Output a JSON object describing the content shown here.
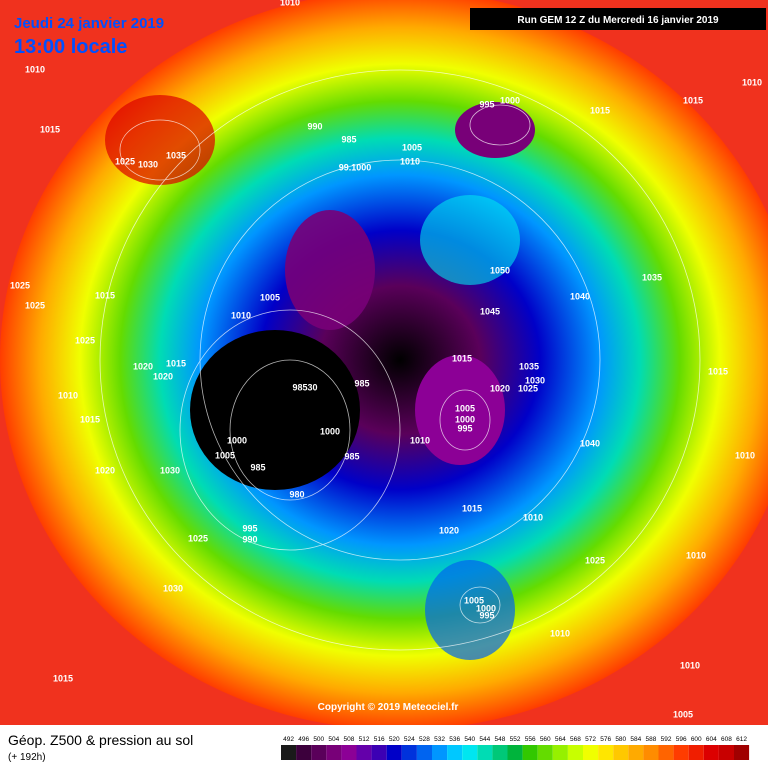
{
  "header": {
    "date": "Jeudi 24 janvier 2019",
    "time": "13:00 locale",
    "run": "Run GEM 12 Z du Mercredi 16 janvier 2019"
  },
  "footer": {
    "title": "Géop. Z500 & pression au sol",
    "lead": "(+ 192h)",
    "copyright": "Copyright © 2019 Meteociel.fr"
  },
  "legend": {
    "values": [
      492,
      496,
      500,
      504,
      508,
      512,
      516,
      520,
      524,
      528,
      532,
      536,
      540,
      544,
      548,
      552,
      556,
      560,
      564,
      568,
      572,
      576,
      580,
      584,
      588,
      592,
      596,
      600,
      604,
      608,
      612
    ],
    "colors": [
      "#1a1a1a",
      "#3c003c",
      "#5a005a",
      "#780078",
      "#8c0096",
      "#6400aa",
      "#3c00b4",
      "#0000c8",
      "#0032dc",
      "#0064f0",
      "#0096ff",
      "#00c8ff",
      "#00e6f0",
      "#00dcb4",
      "#00c878",
      "#00b43c",
      "#32c800",
      "#64dc00",
      "#96f000",
      "#c8ff00",
      "#f0ff00",
      "#ffe600",
      "#ffc800",
      "#ffaa00",
      "#ff8c00",
      "#ff6400",
      "#ff3c00",
      "#f01e00",
      "#dc0000",
      "#c80000",
      "#a00000"
    ]
  },
  "isobar_labels": [
    "1010",
    "1010",
    "1015",
    "1025",
    "1030",
    "1035",
    "995",
    "1000",
    "1015",
    "1015",
    "1010",
    "990",
    "985",
    "1005",
    "1010",
    "99.1000",
    "1050",
    "1040",
    "1035",
    "1025",
    "1025",
    "1015",
    "1005",
    "1010",
    "1045",
    "1025",
    "1020",
    "1020",
    "1015",
    "985",
    "1015",
    "1035",
    "1030",
    "1020",
    "1025",
    "1015",
    "98530",
    "1010",
    "1015",
    "1005",
    "1000",
    "995",
    "1000",
    "1010",
    "1040",
    "1010",
    "1000",
    "1005",
    "985",
    "1030",
    "1020",
    "985",
    "980",
    "1015",
    "1010",
    "1020",
    "995",
    "990",
    "1025",
    "1025",
    "1010",
    "1030",
    "1005",
    "1000",
    "995",
    "1010",
    "1010",
    "1015",
    "1005"
  ]
}
